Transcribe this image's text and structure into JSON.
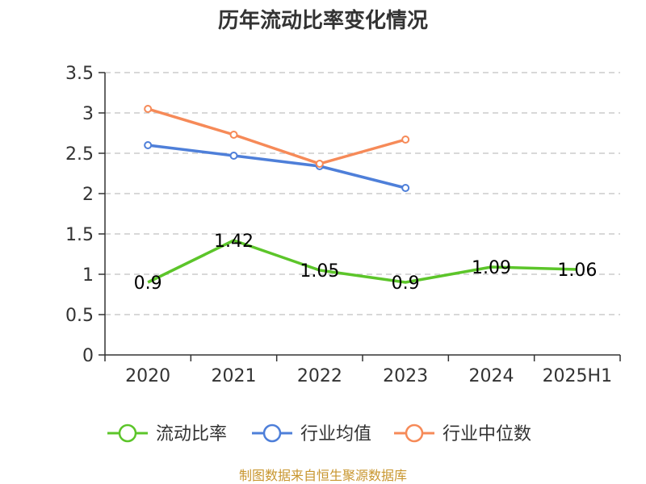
{
  "chart_data": {
    "type": "line",
    "title": "历年流动比率变化情况",
    "categories": [
      "2020",
      "2021",
      "2022",
      "2023",
      "2024",
      "2025H1"
    ],
    "ylim": [
      0,
      3.5
    ],
    "yticks": [
      "0",
      "0.5",
      "1",
      "1.5",
      "2",
      "2.5",
      "3",
      "3.5"
    ],
    "grid": true,
    "legend_position": "bottom",
    "series": [
      {
        "name": "流动比率",
        "color": "#5cc52a",
        "values": [
          0.9,
          1.42,
          1.05,
          0.9,
          1.09,
          1.06
        ],
        "labels": [
          "0.9",
          "1.42",
          "1.05",
          "0.9",
          "1.09",
          "1.06"
        ],
        "show_labels": true,
        "show_markers": false
      },
      {
        "name": "行业均值",
        "color": "#4e7fd9",
        "values": [
          2.6,
          2.47,
          2.34,
          2.07,
          null,
          null
        ],
        "show_labels": false,
        "show_markers": true
      },
      {
        "name": "行业中位数",
        "color": "#f68a58",
        "values": [
          3.05,
          2.73,
          2.37,
          2.67,
          null,
          null
        ],
        "show_labels": false,
        "show_markers": true
      }
    ]
  },
  "footer": {
    "source": "制图数据来自恒生聚源数据库"
  }
}
